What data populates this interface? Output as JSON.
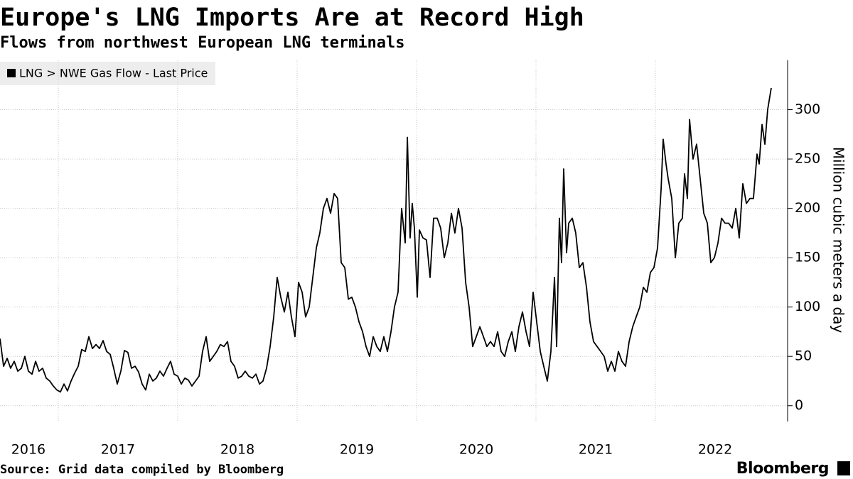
{
  "chart_data": {
    "type": "line",
    "title": "Europe's LNG Imports Are at Record High",
    "subtitle": "Flows from northwest European LNG terminals",
    "y_label": "Million cubic meters a day",
    "source": "Source: Grid data compiled by Bloomberg",
    "brand": "Bloomberg",
    "legend_position": "top-left",
    "grid": true,
    "xlim": [
      2016.512,
      2023.107
    ],
    "xgrid": [
      2017,
      2018,
      2019,
      2020,
      2021,
      2022
    ],
    "xticks": [
      {
        "value": 2016.75,
        "label": "2016"
      },
      {
        "value": 2017.5,
        "label": "2017"
      },
      {
        "value": 2018.5,
        "label": "2018"
      },
      {
        "value": 2019.5,
        "label": "2019"
      },
      {
        "value": 2020.5,
        "label": "2020"
      },
      {
        "value": 2021.5,
        "label": "2021"
      },
      {
        "value": 2022.5,
        "label": "2022"
      }
    ],
    "ylim": [
      -16,
      350
    ],
    "yticks": [
      0,
      50,
      100,
      150,
      200,
      250,
      300
    ],
    "x": [
      2016.512,
      2016.542,
      2016.572,
      2016.601,
      2016.631,
      2016.661,
      2016.691,
      2016.72,
      2016.75,
      2016.78,
      2016.81,
      2016.839,
      2016.869,
      2016.899,
      2016.929,
      2016.958,
      2016.988,
      2017.018,
      2017.048,
      2017.077,
      2017.107,
      2017.137,
      2017.167,
      2017.196,
      2017.226,
      2017.256,
      2017.286,
      2017.316,
      2017.345,
      2017.375,
      2017.405,
      2017.435,
      2017.464,
      2017.494,
      2017.524,
      2017.554,
      2017.583,
      2017.613,
      2017.643,
      2017.673,
      2017.702,
      2017.732,
      2017.762,
      2017.792,
      2017.821,
      2017.851,
      2017.881,
      2017.911,
      2017.94,
      2017.97,
      2018.0,
      2018.03,
      2018.06,
      2018.089,
      2018.119,
      2018.149,
      2018.179,
      2018.208,
      2018.238,
      2018.268,
      2018.298,
      2018.327,
      2018.357,
      2018.387,
      2018.417,
      2018.446,
      2018.476,
      2018.506,
      2018.536,
      2018.565,
      2018.595,
      2018.625,
      2018.655,
      2018.685,
      2018.714,
      2018.744,
      2018.774,
      2018.804,
      2018.833,
      2018.863,
      2018.893,
      2018.923,
      2018.952,
      2018.982,
      2019.012,
      2019.042,
      2019.071,
      2019.101,
      2019.131,
      2019.161,
      2019.19,
      2019.22,
      2019.25,
      2019.28,
      2019.31,
      2019.339,
      2019.369,
      2019.399,
      2019.429,
      2019.458,
      2019.488,
      2019.518,
      2019.548,
      2019.577,
      2019.607,
      2019.637,
      2019.667,
      2019.696,
      2019.726,
      2019.756,
      2019.786,
      2019.815,
      2019.845,
      2019.875,
      2019.905,
      2019.923,
      2019.946,
      2019.964,
      2019.982,
      2020.006,
      2020.024,
      2020.054,
      2020.083,
      2020.113,
      2020.143,
      2020.173,
      2020.202,
      2020.232,
      2020.262,
      2020.292,
      2020.321,
      2020.351,
      2020.381,
      2020.411,
      2020.44,
      2020.47,
      2020.5,
      2020.53,
      2020.56,
      2020.589,
      2020.619,
      2020.649,
      2020.679,
      2020.708,
      2020.738,
      2020.768,
      2020.798,
      2020.827,
      2020.857,
      2020.887,
      2020.917,
      2020.946,
      2020.976,
      2021.006,
      2021.036,
      2021.065,
      2021.095,
      2021.125,
      2021.155,
      2021.173,
      2021.196,
      2021.214,
      2021.232,
      2021.256,
      2021.274,
      2021.304,
      2021.333,
      2021.363,
      2021.393,
      2021.423,
      2021.452,
      2021.482,
      2021.512,
      2021.542,
      2021.571,
      2021.601,
      2021.631,
      2021.661,
      2021.69,
      2021.72,
      2021.75,
      2021.78,
      2021.81,
      2021.839,
      2021.869,
      2021.899,
      2021.929,
      2021.958,
      2021.988,
      2022.018,
      2022.048,
      2022.065,
      2022.089,
      2022.107,
      2022.137,
      2022.167,
      2022.196,
      2022.226,
      2022.244,
      2022.268,
      2022.286,
      2022.315,
      2022.345,
      2022.375,
      2022.405,
      2022.435,
      2022.464,
      2022.494,
      2022.524,
      2022.554,
      2022.583,
      2022.613,
      2022.643,
      2022.673,
      2022.702,
      2022.732,
      2022.762,
      2022.792,
      2022.821,
      2022.851,
      2022.869,
      2022.893,
      2022.917,
      2022.94,
      2022.97
    ],
    "series": [
      {
        "name": "LNG > NWE Gas Flow - Last Price",
        "color": "#000000",
        "values": [
          68,
          40,
          48,
          38,
          45,
          35,
          38,
          50,
          35,
          32,
          45,
          35,
          38,
          28,
          25,
          20,
          16,
          14,
          22,
          15,
          25,
          33,
          40,
          57,
          55,
          70,
          58,
          62,
          58,
          66,
          55,
          52,
          38,
          22,
          35,
          56,
          54,
          38,
          40,
          34,
          22,
          16,
          32,
          25,
          28,
          35,
          30,
          38,
          45,
          32,
          30,
          22,
          28,
          26,
          20,
          25,
          30,
          55,
          70,
          45,
          50,
          55,
          62,
          60,
          65,
          45,
          40,
          28,
          30,
          35,
          30,
          28,
          32,
          22,
          25,
          38,
          60,
          90,
          130,
          110,
          95,
          115,
          90,
          70,
          125,
          115,
          90,
          100,
          130,
          160,
          175,
          200,
          210,
          195,
          215,
          210,
          145,
          140,
          108,
          110,
          100,
          85,
          75,
          60,
          50,
          70,
          60,
          55,
          70,
          55,
          75,
          100,
          115,
          200,
          165,
          272,
          170,
          205,
          180,
          110,
          178,
          170,
          168,
          130,
          190,
          190,
          180,
          150,
          165,
          195,
          175,
          200,
          180,
          125,
          100,
          60,
          70,
          80,
          70,
          60,
          65,
          60,
          75,
          55,
          50,
          65,
          75,
          55,
          80,
          95,
          75,
          60,
          115,
          85,
          55,
          40,
          25,
          55,
          130,
          60,
          190,
          145,
          240,
          155,
          185,
          190,
          175,
          140,
          145,
          120,
          85,
          65,
          60,
          55,
          50,
          35,
          45,
          35,
          55,
          45,
          40,
          65,
          80,
          90,
          100,
          120,
          115,
          135,
          140,
          160,
          220,
          270,
          245,
          230,
          210,
          150,
          185,
          190,
          235,
          210,
          290,
          250,
          265,
          230,
          195,
          185,
          145,
          150,
          165,
          190,
          185,
          185,
          180,
          200,
          170,
          225,
          205,
          210,
          210,
          255,
          245,
          285,
          265,
          300,
          322
        ]
      }
    ]
  }
}
